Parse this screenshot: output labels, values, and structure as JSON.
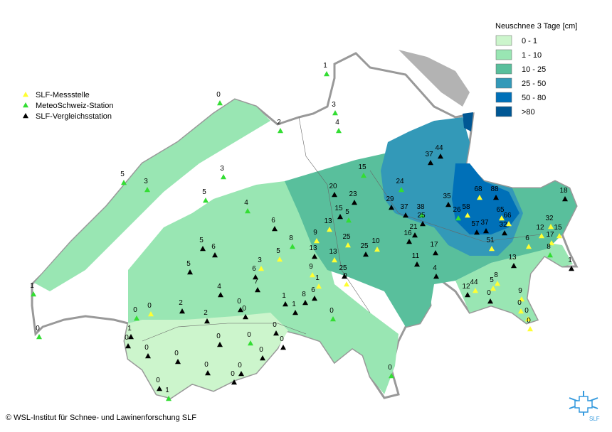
{
  "legend": {
    "title": "Neuschnee 3 Tage [cm]",
    "classes": [
      {
        "label": "0 - 1",
        "color": "#ccf5cc"
      },
      {
        "label": "1 - 10",
        "color": "#99e6b3"
      },
      {
        "label": "10 - 25",
        "color": "#59bf9c"
      },
      {
        "label": "25 - 50",
        "color": "#3399b8"
      },
      {
        "label": "50 - 80",
        "color": "#0070b8"
      },
      {
        "label": ">80",
        "color": "#005794"
      }
    ]
  },
  "station_types": [
    {
      "label": "SLF-Messstelle",
      "color": "#ffff33"
    },
    {
      "label": "MeteoSchweiz-Station",
      "color": "#33dd33"
    },
    {
      "label": "SLF-Vergleichsstation",
      "color": "#000000"
    }
  ],
  "stations": [
    {
      "value": 1,
      "type": 1
    },
    {
      "value": 0,
      "type": 1
    },
    {
      "value": 3,
      "type": 1
    },
    {
      "value": 2,
      "type": 1
    },
    {
      "value": 4,
      "type": 1
    },
    {
      "value": 3,
      "type": 1
    },
    {
      "value": 5,
      "type": 1
    },
    {
      "value": 3,
      "type": 1
    },
    {
      "value": 5,
      "type": 1
    },
    {
      "value": 4,
      "type": 1
    },
    {
      "value": 15,
      "type": 1
    },
    {
      "value": 44,
      "type": 2
    },
    {
      "value": 37,
      "type": 2
    },
    {
      "value": 20,
      "type": 2
    },
    {
      "value": 23,
      "type": 2
    },
    {
      "value": 24,
      "type": 1
    },
    {
      "value": 29,
      "type": 2
    },
    {
      "value": 37,
      "type": 2
    },
    {
      "value": 38,
      "type": 1
    },
    {
      "value": 35,
      "type": 2
    },
    {
      "value": 68,
      "type": 0
    },
    {
      "value": 88,
      "type": 2
    },
    {
      "value": 18,
      "type": 2
    },
    {
      "value": 15,
      "type": 2
    },
    {
      "value": 5,
      "type": 1
    },
    {
      "value": 25,
      "type": 2
    },
    {
      "value": 26,
      "type": 1
    },
    {
      "value": 58,
      "type": 0
    },
    {
      "value": 65,
      "type": 0
    },
    {
      "value": 66,
      "type": 0
    },
    {
      "value": 6,
      "type": 2
    },
    {
      "value": 13,
      "type": 0
    },
    {
      "value": 9,
      "type": 0
    },
    {
      "value": 21,
      "type": 2
    },
    {
      "value": 16,
      "type": 2
    },
    {
      "value": 57,
      "type": 2
    },
    {
      "value": 37,
      "type": 2
    },
    {
      "value": 32,
      "type": 2
    },
    {
      "value": 32,
      "type": 0
    },
    {
      "value": 12,
      "type": 0
    },
    {
      "value": 15,
      "type": 0
    },
    {
      "value": 17,
      "type": 0
    },
    {
      "value": 8,
      "type": 1
    },
    {
      "value": 25,
      "type": 0
    },
    {
      "value": 10,
      "type": 0
    },
    {
      "value": 6,
      "type": 0
    },
    {
      "value": 5,
      "type": 2
    },
    {
      "value": 6,
      "type": 2
    },
    {
      "value": 13,
      "type": 2
    },
    {
      "value": 51,
      "type": 0
    },
    {
      "value": 17,
      "type": 2
    },
    {
      "value": 25,
      "type": 2
    },
    {
      "value": 13,
      "type": 0
    },
    {
      "value": 8,
      "type": 1
    },
    {
      "value": 3,
      "type": 0
    },
    {
      "value": 5,
      "type": 0
    },
    {
      "value": 11,
      "type": 2
    },
    {
      "value": 13,
      "type": 2
    },
    {
      "value": 1,
      "type": 2
    },
    {
      "value": 5,
      "type": 2
    },
    {
      "value": 6,
      "type": 2
    },
    {
      "value": 9,
      "type": 0
    },
    {
      "value": 25,
      "type": 2
    },
    {
      "value": 0,
      "type": 0
    },
    {
      "value": 4,
      "type": 2
    },
    {
      "value": 8,
      "type": 0
    },
    {
      "value": 1,
      "type": 0
    },
    {
      "value": 7,
      "type": 2
    },
    {
      "value": 5,
      "type": 0
    },
    {
      "value": 4,
      "type": 2
    },
    {
      "value": 44,
      "type": 0
    },
    {
      "value": 12,
      "type": 2
    },
    {
      "value": 1,
      "type": 1
    },
    {
      "value": 6,
      "type": 2
    },
    {
      "value": 8,
      "type": 2
    },
    {
      "value": 1,
      "type": 2
    },
    {
      "value": 0,
      "type": 2
    },
    {
      "value": 9,
      "type": 0
    },
    {
      "value": 0,
      "type": 2
    },
    {
      "value": 0,
      "type": 0
    },
    {
      "value": 2,
      "type": 2
    },
    {
      "value": 0,
      "type": 0
    },
    {
      "value": 1,
      "type": 2
    },
    {
      "value": 0,
      "type": 0
    },
    {
      "value": 0,
      "type": 0
    },
    {
      "value": 0,
      "type": 1
    },
    {
      "value": 0,
      "type": 2
    },
    {
      "value": 2,
      "type": 2
    },
    {
      "value": 0,
      "type": 1
    },
    {
      "value": 0,
      "type": 1
    },
    {
      "value": 1,
      "type": 2
    },
    {
      "value": 0,
      "type": 2
    },
    {
      "value": 0,
      "type": 2
    },
    {
      "value": 0,
      "type": 1
    },
    {
      "value": 0,
      "type": 2
    },
    {
      "value": 0,
      "type": 2
    },
    {
      "value": 0,
      "type": 2
    },
    {
      "value": 0,
      "type": 2
    },
    {
      "value": 0,
      "type": 2
    },
    {
      "value": 0,
      "type": 2
    },
    {
      "value": 0,
      "type": 2
    },
    {
      "value": 0,
      "type": 2
    },
    {
      "value": 0,
      "type": 1
    },
    {
      "value": 0,
      "type": 2
    },
    {
      "value": 1,
      "type": 1
    }
  ],
  "copyright": "© WSL-Institut für Schnee- und Lawinenforschung SLF",
  "logo_text": "SLF"
}
